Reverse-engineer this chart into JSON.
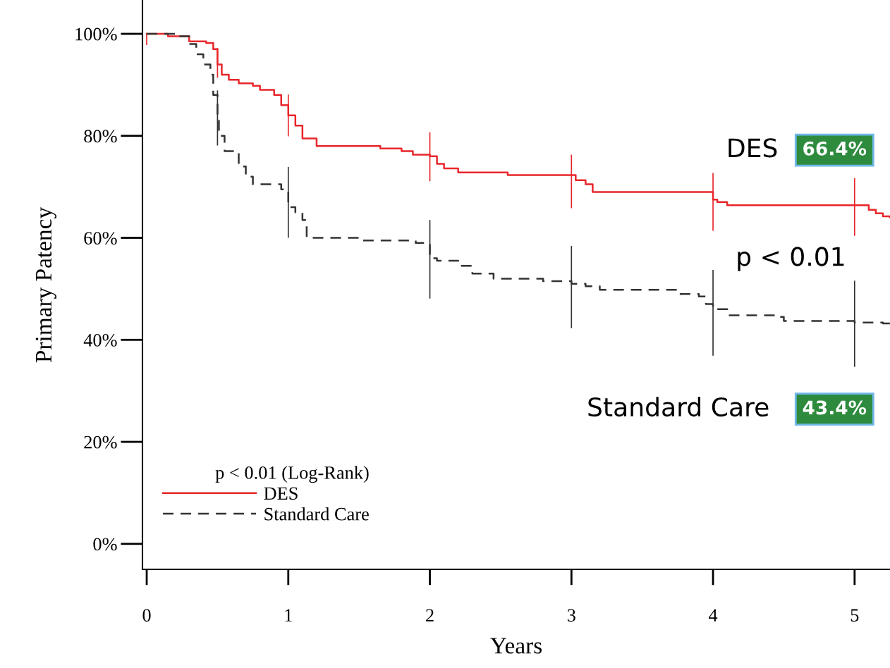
{
  "chart_data": {
    "type": "step",
    "xlabel": "Years",
    "ylabel": "Primary Patency",
    "legend_title": "p < 0.01 (Log-Rank)",
    "legend": "bottom left",
    "grid": false,
    "xlim": [
      -0.03,
      5.25
    ],
    "ylim": [
      -5,
      106.5
    ],
    "xticks": [
      0,
      1,
      2,
      3,
      4,
      5
    ],
    "yticks": [
      {
        "value": 0,
        "label": "0%"
      },
      {
        "value": 20,
        "label": "20%"
      },
      {
        "value": 40,
        "label": "40%"
      },
      {
        "value": 60,
        "label": "60%"
      },
      {
        "value": 80,
        "label": "80%"
      },
      {
        "value": 100,
        "label": "100%"
      }
    ],
    "series": [
      {
        "name": "DES",
        "color": "#e8262b",
        "line_style": "solid",
        "x": [
          0,
          0.15,
          0.3,
          0.42,
          0.47,
          0.5,
          0.53,
          0.58,
          0.65,
          0.75,
          0.8,
          0.9,
          0.95,
          1.0,
          1.05,
          1.1,
          1.2,
          1.5,
          1.65,
          1.8,
          1.88,
          2.0,
          2.05,
          2.1,
          2.2,
          2.5,
          2.55,
          3.0,
          3.03,
          3.1,
          3.15,
          4.0,
          4.03,
          4.1,
          5.0,
          5.1,
          5.15,
          5.2,
          5.25
        ],
        "values": [
          100,
          99.5,
          98.5,
          98.2,
          97,
          94,
          92,
          91,
          90.3,
          89.8,
          89,
          88,
          86,
          84,
          82,
          79.5,
          78,
          78,
          77.5,
          77,
          76.3,
          76,
          74.5,
          73.6,
          72.8,
          72.8,
          72.3,
          72.3,
          71.3,
          70.5,
          69,
          67.5,
          67,
          66.4,
          66.4,
          65.5,
          64.8,
          64.2,
          64
        ],
        "errors": [
          [
            97.8,
            100
          ],
          null,
          null,
          null,
          null,
          [
            91.4,
            97.2
          ],
          null,
          null,
          null,
          null,
          null,
          null,
          null,
          [
            79.9,
            88.1
          ],
          null,
          null,
          null,
          null,
          null,
          null,
          null,
          [
            71.1,
            80.7
          ],
          null,
          null,
          null,
          null,
          null,
          [
            65.8,
            76.3
          ],
          null,
          null,
          null,
          [
            61.4,
            72.7
          ],
          null,
          null,
          [
            60.4,
            71.7
          ],
          null,
          null,
          null,
          null
        ]
      },
      {
        "name": "Standard Care",
        "color": "#333333",
        "line_style": "dashed",
        "x": [
          0,
          0.2,
          0.3,
          0.35,
          0.4,
          0.45,
          0.47,
          0.5,
          0.51,
          0.55,
          0.65,
          0.7,
          0.75,
          0.9,
          0.95,
          1.0,
          1.05,
          1.1,
          1.13,
          1.5,
          1.9,
          2.0,
          2.05,
          2.2,
          2.3,
          2.45,
          2.8,
          3.0,
          3.1,
          3.2,
          3.7,
          3.75,
          3.9,
          3.95,
          4.0,
          4.1,
          4.45,
          4.5,
          5.0,
          5.2,
          5.25
        ],
        "values": [
          100,
          99.5,
          98,
          96,
          94,
          92,
          88,
          83,
          80,
          77,
          74,
          72,
          70.5,
          70.5,
          69.5,
          66,
          65,
          63.5,
          60,
          59.5,
          59,
          56,
          55.5,
          54.5,
          53,
          52,
          51.5,
          51,
          50.5,
          49.8,
          49.8,
          49,
          48.5,
          47,
          46,
          44.8,
          44.5,
          43.7,
          43.4,
          43.2,
          42.5
        ],
        "errors": [
          null,
          null,
          null,
          null,
          null,
          null,
          null,
          [
            78.1,
            88.9
          ],
          null,
          null,
          null,
          null,
          null,
          null,
          null,
          [
            60,
            73.9
          ],
          null,
          null,
          null,
          null,
          null,
          [
            48.1,
            63.5
          ],
          null,
          null,
          null,
          null,
          null,
          [
            42.3,
            58.4
          ],
          null,
          null,
          null,
          null,
          null,
          null,
          [
            36.9,
            53.7
          ],
          null,
          null,
          null,
          [
            34.7,
            51.6
          ],
          null,
          null
        ]
      }
    ],
    "annotations": [
      "DES",
      "66.4%",
      "p < 0.01",
      "Standard Care",
      "43.4%"
    ]
  }
}
